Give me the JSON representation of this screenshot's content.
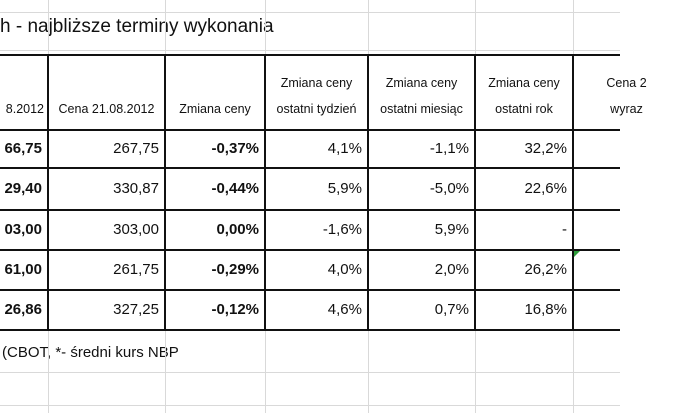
{
  "title": "h - najbliższe terminy wykonania",
  "table": {
    "header": [
      [
        "8.2012"
      ],
      [
        "Cena 21.08.2012"
      ],
      [
        "Zmiana ceny"
      ],
      [
        "Zmiana ceny",
        "ostatni tydzień"
      ],
      [
        "Zmiana ceny",
        "ostatni miesiąc"
      ],
      [
        "Zmiana ceny",
        "ostatni rok"
      ],
      [
        "Cena 2",
        "wyraz"
      ]
    ],
    "rows": [
      [
        "66,75",
        "267,75",
        "-0,37%",
        "4,1%",
        "-1,1%",
        "32,2%"
      ],
      [
        "29,40",
        "330,87",
        "-0,44%",
        "5,9%",
        "-5,0%",
        "22,6%"
      ],
      [
        "03,00",
        "303,00",
        "0,00%",
        "-1,6%",
        "5,9%",
        "-"
      ],
      [
        "61,00",
        "261,75",
        "-0,29%",
        "4,0%",
        "2,0%",
        "26,2%"
      ],
      [
        "26,86",
        "327,25",
        "-0,12%",
        "4,6%",
        "0,7%",
        "16,8%"
      ]
    ]
  },
  "footer": "(CBOT, *- średni kurs NBP"
}
